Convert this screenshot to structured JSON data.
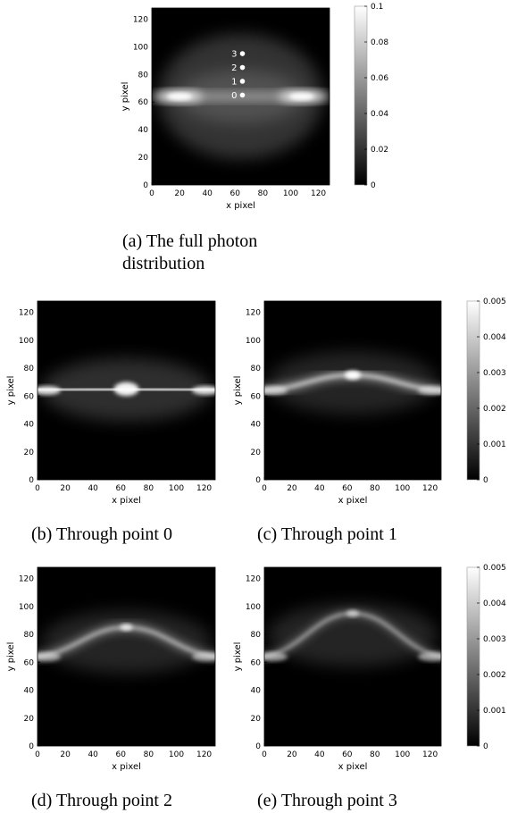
{
  "figure": {
    "captions": {
      "a": "(a) The full photon distribution",
      "b": "(b) Through point 0",
      "c": "(c) Through point 1",
      "d": "(d) Through point 2",
      "e": "(e) Through point 3"
    }
  },
  "chart_data": [
    {
      "id": "a",
      "type": "heatmap",
      "title": "",
      "xlabel": "x pixel",
      "ylabel": "y pixel",
      "xlim": [
        0,
        128
      ],
      "ylim": [
        0,
        128
      ],
      "xticks": [
        0,
        20,
        40,
        60,
        80,
        100,
        120
      ],
      "yticks": [
        0,
        20,
        40,
        60,
        80,
        100,
        120
      ],
      "colormap": "grayscale",
      "colorbar": {
        "min": 0,
        "max": 0.1,
        "ticks": [
          0,
          0.02,
          0.04,
          0.06,
          0.08,
          0.1
        ]
      },
      "description_values": {
        "bright_spots": [
          {
            "x": 20,
            "y": 64
          },
          {
            "x": 108,
            "y": 64
          }
        ],
        "band_y": 64
      },
      "points": [
        {
          "label": "0",
          "x": 64,
          "y": 65
        },
        {
          "label": "1",
          "x": 64,
          "y": 75
        },
        {
          "label": "2",
          "x": 64,
          "y": 85
        },
        {
          "label": "3",
          "x": 64,
          "y": 95
        }
      ]
    },
    {
      "id": "b",
      "type": "heatmap",
      "title": "",
      "xlabel": "x pixel",
      "ylabel": "y pixel",
      "xlim": [
        0,
        128
      ],
      "ylim": [
        0,
        128
      ],
      "xticks": [
        0,
        20,
        40,
        60,
        80,
        100,
        120
      ],
      "yticks": [
        0,
        20,
        40,
        60,
        80,
        100,
        120
      ],
      "colormap": "grayscale",
      "peak": {
        "x": 64,
        "y": 65
      }
    },
    {
      "id": "c",
      "type": "heatmap",
      "title": "",
      "xlabel": "x pixel",
      "ylabel": "y pixel",
      "xlim": [
        0,
        128
      ],
      "ylim": [
        0,
        128
      ],
      "xticks": [
        0,
        20,
        40,
        60,
        80,
        100,
        120
      ],
      "yticks": [
        0,
        20,
        40,
        60,
        80,
        100,
        120
      ],
      "colormap": "grayscale",
      "peak": {
        "x": 64,
        "y": 75
      },
      "colorbar": {
        "min": 0,
        "max": 0.005,
        "ticks": [
          0,
          0.001,
          0.002,
          0.003,
          0.004,
          0.005
        ]
      }
    },
    {
      "id": "d",
      "type": "heatmap",
      "title": "",
      "xlabel": "x pixel",
      "ylabel": "y pixel",
      "xlim": [
        0,
        128
      ],
      "ylim": [
        0,
        128
      ],
      "xticks": [
        0,
        20,
        40,
        60,
        80,
        100,
        120
      ],
      "yticks": [
        0,
        20,
        40,
        60,
        80,
        100,
        120
      ],
      "colormap": "grayscale",
      "peak": {
        "x": 64,
        "y": 85
      }
    },
    {
      "id": "e",
      "type": "heatmap",
      "title": "",
      "xlabel": "x pixel",
      "ylabel": "y pixel",
      "xlim": [
        0,
        128
      ],
      "ylim": [
        0,
        128
      ],
      "xticks": [
        0,
        20,
        40,
        60,
        80,
        100,
        120
      ],
      "yticks": [
        0,
        20,
        40,
        60,
        80,
        100,
        120
      ],
      "colormap": "grayscale",
      "peak": {
        "x": 64,
        "y": 95
      },
      "colorbar": {
        "min": 0,
        "max": 0.005,
        "ticks": [
          0,
          0.001,
          0.002,
          0.003,
          0.004,
          0.005
        ]
      }
    }
  ]
}
